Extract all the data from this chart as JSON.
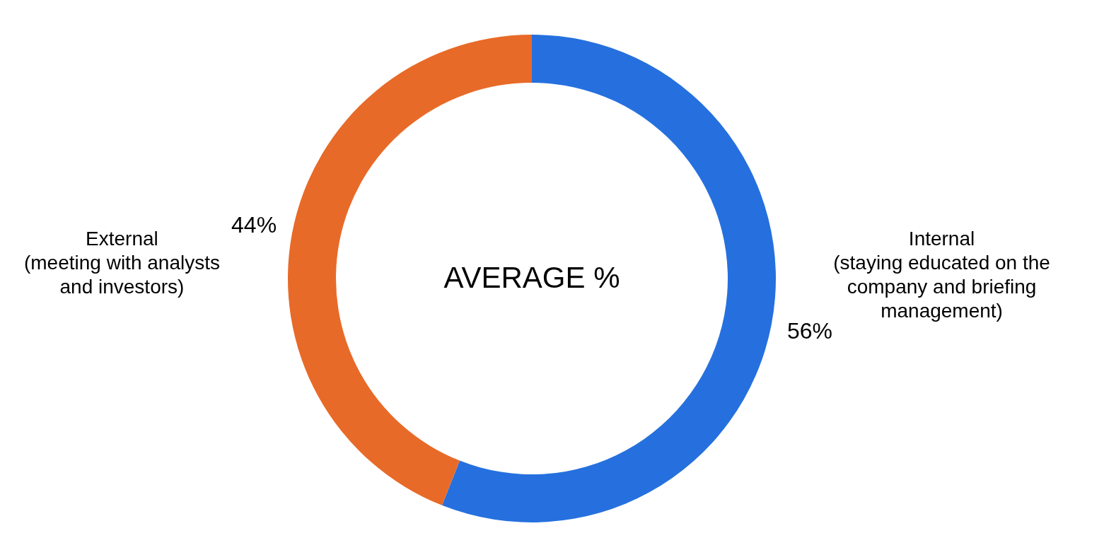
{
  "chart_data": {
    "type": "donut",
    "categories": [
      "Internal\n(staying educated on the\ncompany and briefing\nmanagement)",
      "External\n(meeting with analysts\nand investors)"
    ],
    "values": [
      56,
      44
    ],
    "colors": [
      "#2570de",
      "#e86a28"
    ],
    "value_labels": [
      "56%",
      "44%"
    ],
    "annotations": [
      "AVERAGE %"
    ]
  }
}
